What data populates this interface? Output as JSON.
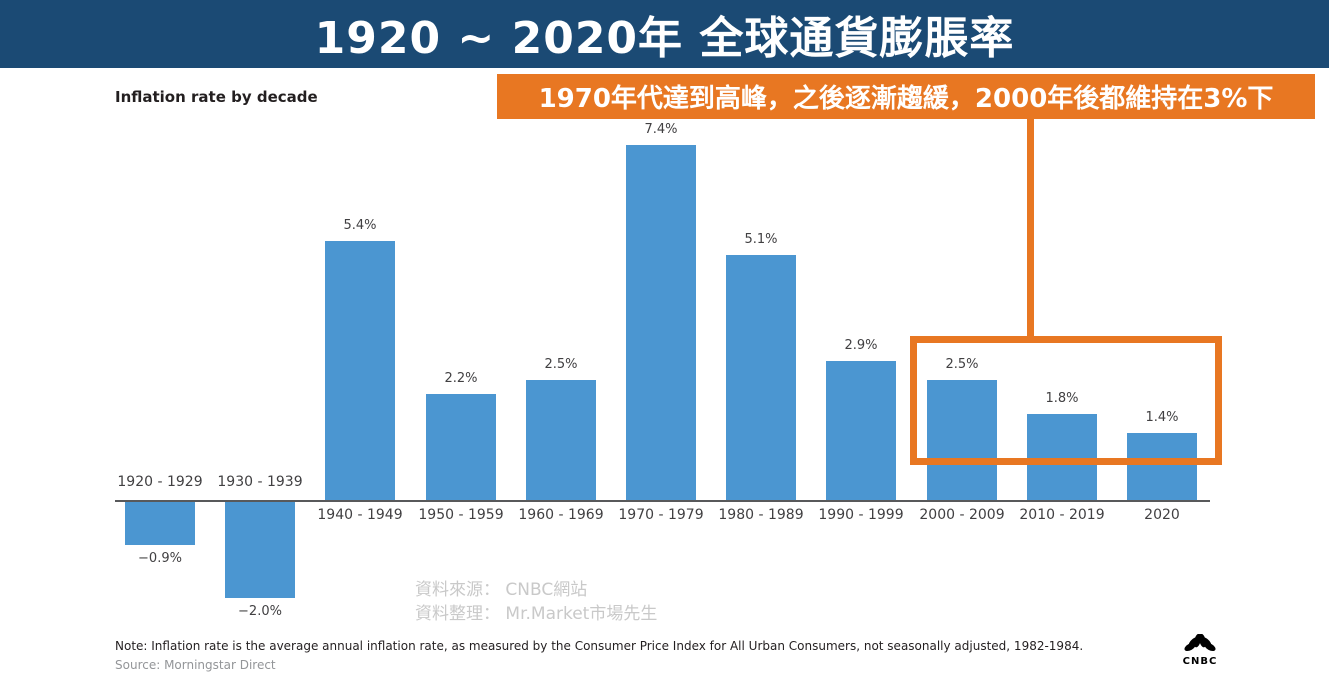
{
  "banner": {
    "title": "1920 ~ 2020年 全球通貨膨脹率",
    "bg_color": "#1B4A74"
  },
  "annotation": {
    "text": "1970年代達到高峰，之後逐漸趨緩，2000年後都維持在3%下",
    "bg_color": "#E87722"
  },
  "chart_data": {
    "type": "bar",
    "title": "Inflation rate by decade",
    "categories": [
      "1920 - 1929",
      "1930 - 1939",
      "1940 - 1949",
      "1950 - 1959",
      "1960 - 1969",
      "1970 - 1979",
      "1980 - 1989",
      "1990 - 1999",
      "2000 - 2009",
      "2010 - 2019",
      "2020"
    ],
    "values": [
      -0.9,
      -2.0,
      5.4,
      2.2,
      2.5,
      7.4,
      5.1,
      2.9,
      2.5,
      1.8,
      1.4
    ],
    "value_labels": [
      "−0.9%",
      "−2.0%",
      "5.4%",
      "2.2%",
      "2.5%",
      "7.4%",
      "5.1%",
      "2.9%",
      "2.5%",
      "1.8%",
      "1.4%"
    ],
    "bar_color": "#4B96D1",
    "axis_color": "#58595B",
    "highlight": {
      "categories": [
        "2000 - 2009",
        "2010 - 2019",
        "2020"
      ],
      "box_color": "#E87722"
    },
    "xlabel": "",
    "ylabel": "",
    "ylim": [
      -2.5,
      8
    ],
    "grid": false,
    "legend": "none"
  },
  "watermark": {
    "line1": "資料來源： CNBC網站",
    "line2": "資料整理： Mr.Market市場先生"
  },
  "footer": {
    "note": "Note: Inflation rate is the average annual inflation rate, as measured by the Consumer Price Index for All Urban Consumers, not seasonally adjusted, 1982-1984.",
    "source": "Source: Morningstar Direct",
    "logo_text": "CNBC"
  }
}
